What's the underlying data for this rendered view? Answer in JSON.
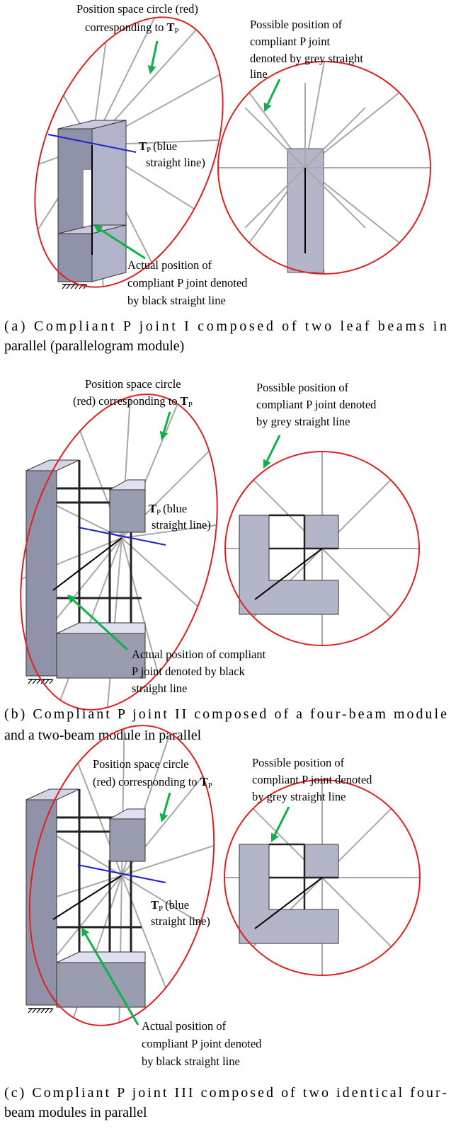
{
  "symbol": {
    "base": "T",
    "subscript": "P"
  },
  "panels": [
    {
      "circle_label": [
        "Position space circle (red)",
        "corresponding to"
      ],
      "possible_label": [
        "Possible position of",
        "compliant P joint",
        "denoted by grey straight",
        "line"
      ],
      "tp_label": [
        "(blue",
        "straight line)"
      ],
      "actual_label": [
        "Actual position of",
        "compliant P joint denoted",
        "by black straight line"
      ],
      "caption": [
        "(a) Compliant P joint I composed of two leaf beams in",
        "parallel (parallelogram module)"
      ]
    },
    {
      "circle_label": [
        "Position space circle",
        "(red) corresponding to"
      ],
      "possible_label": [
        "Possible position of",
        "compliant P joint denoted",
        "by grey straight line"
      ],
      "tp_label": [
        "(blue",
        "straight line)"
      ],
      "actual_label": [
        "Actual position of compliant",
        "P joint denoted by black",
        "straight line"
      ],
      "caption": [
        "(b) Compliant P joint II composed of a four-beam module",
        "and a two-beam module in parallel"
      ]
    },
    {
      "circle_label": [
        "Position space circle",
        "(red) corresponding to"
      ],
      "possible_label": [
        "Possible position of",
        "compliant P joint denoted",
        "by grey straight line"
      ],
      "tp_label": [
        "(blue",
        "straight line)"
      ],
      "actual_label": [
        "Actual position of",
        "compliant P joint denoted",
        "by black straight line"
      ],
      "caption": [
        "(c) Compliant P joint III composed of two identical four-",
        "beam modules in parallel"
      ]
    }
  ]
}
